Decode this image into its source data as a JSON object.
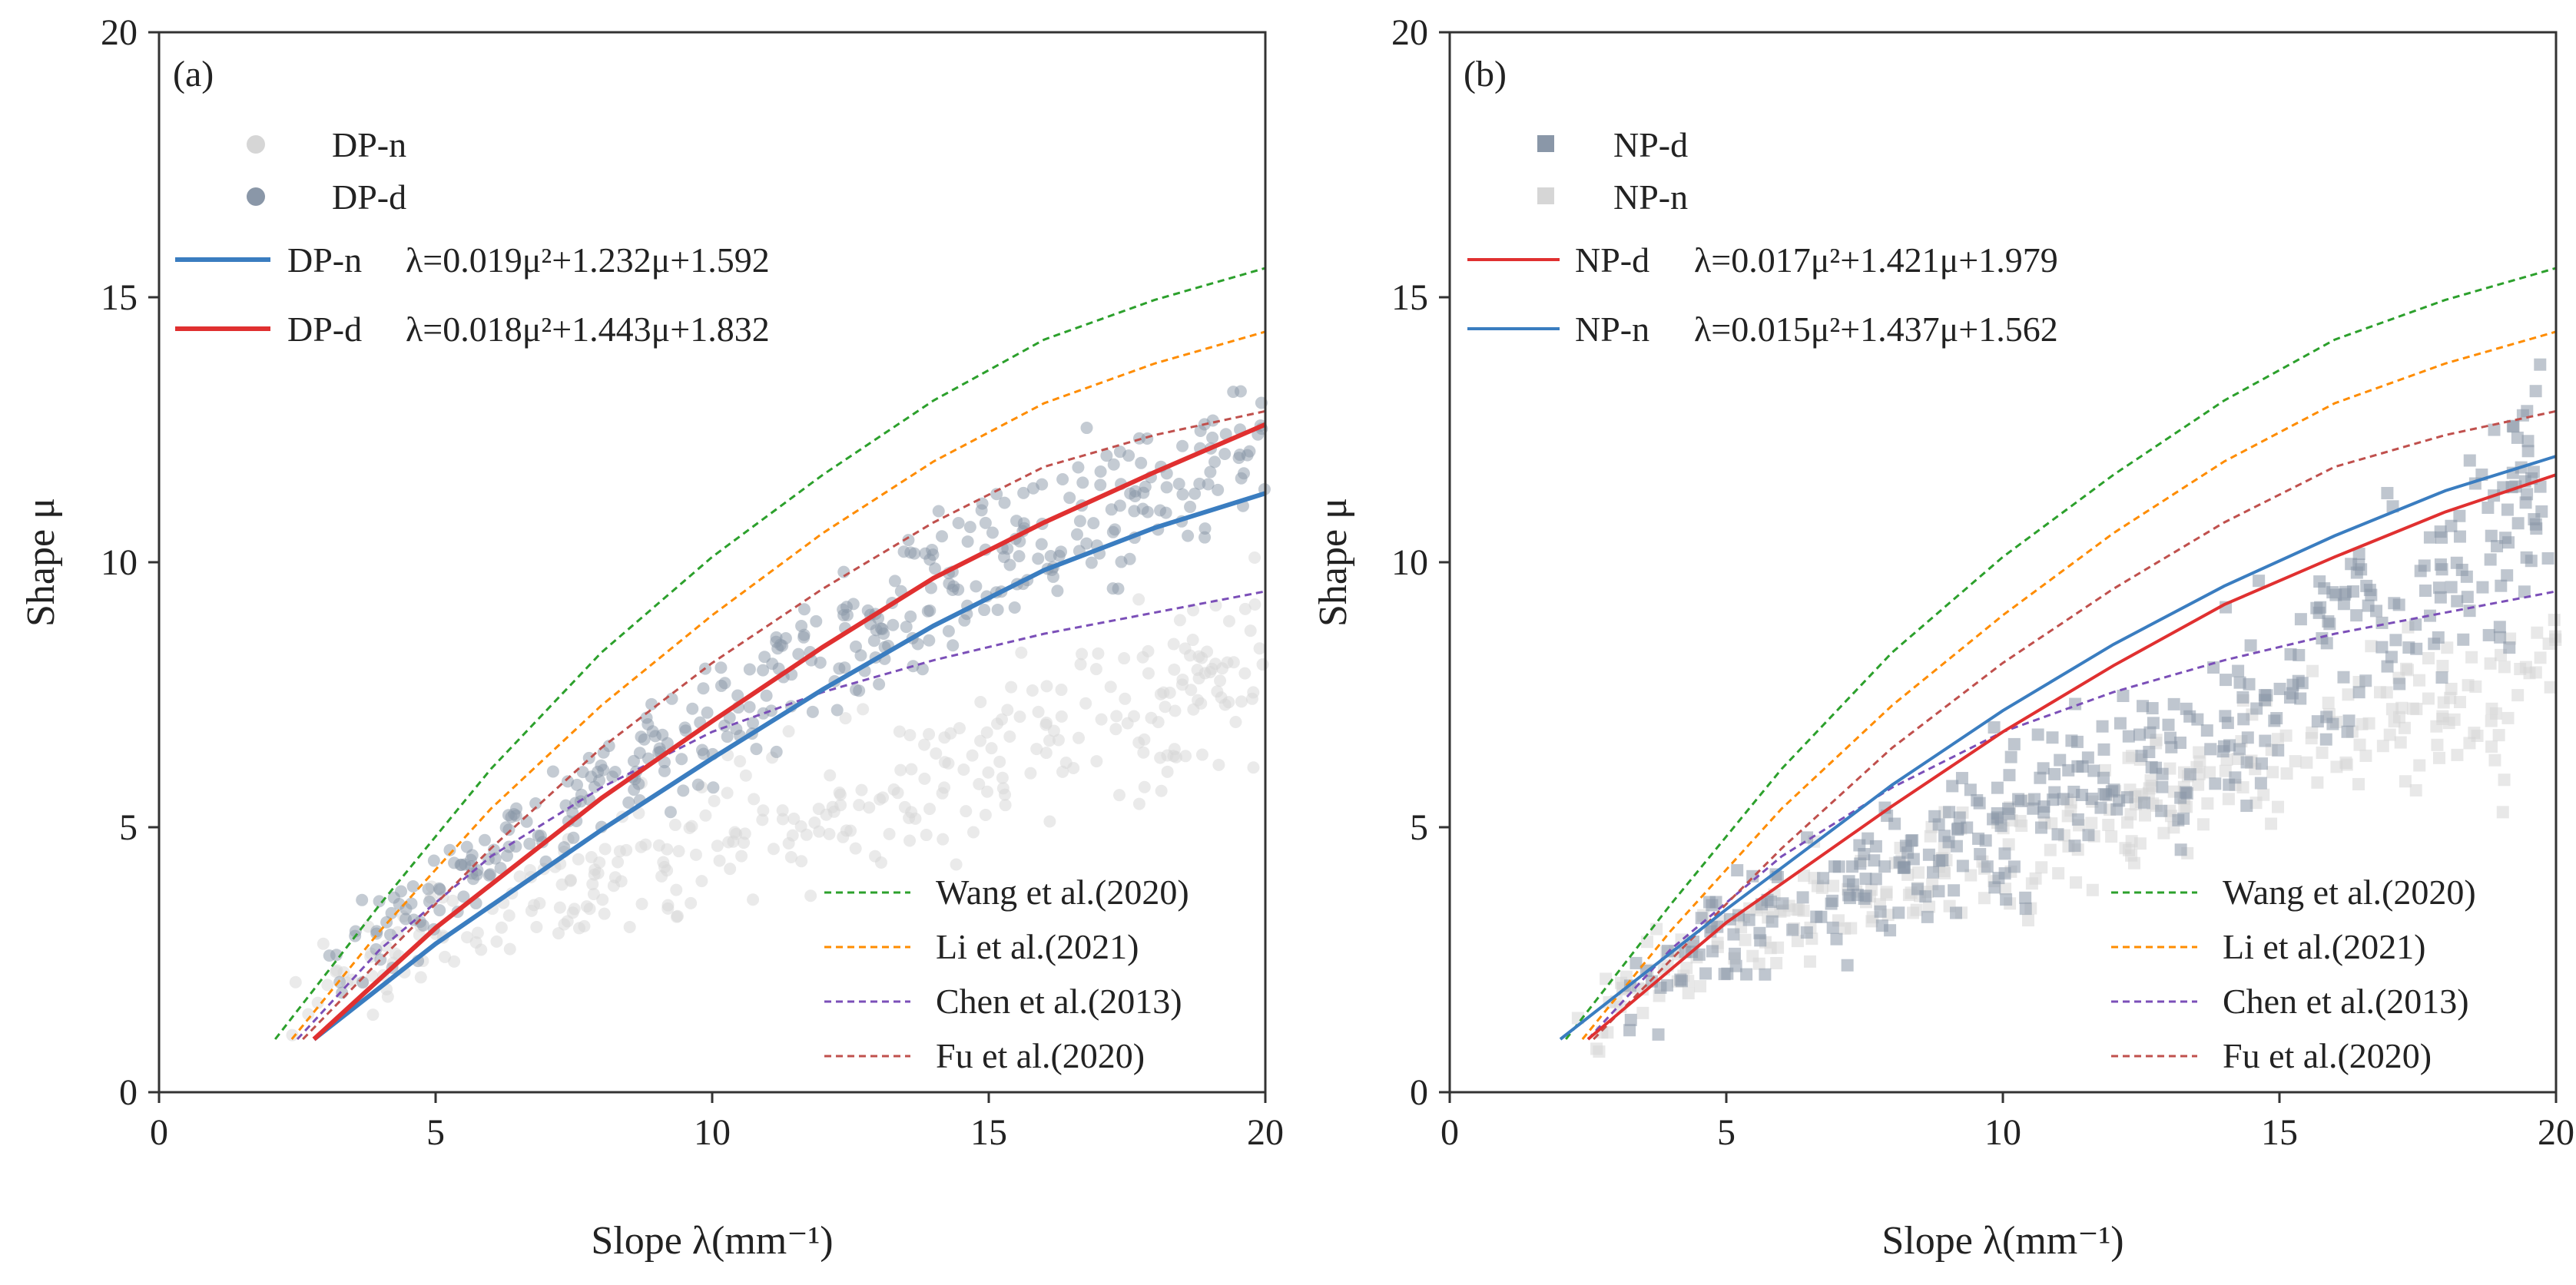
{
  "colors": {
    "wang": "#2ca02c",
    "li": "#ff8c00",
    "chen": "#7b4fb8",
    "fu": "#c0504d",
    "blue_fit": "#3a7dc0",
    "red_fit": "#e03030",
    "pts_light": "#d6d6d6",
    "pts_dark": "#8a97a8"
  },
  "chart_data": [
    {
      "type": "scatter",
      "panel_label": "(a)",
      "xlabel": "Slope λ(mm⁻¹)",
      "ylabel": "Shape μ",
      "xlim": [
        0,
        20
      ],
      "ylim": [
        0,
        20
      ],
      "xticks": [
        "0",
        "5",
        "10",
        "15",
        "20"
      ],
      "yticks": [
        "0",
        "5",
        "10",
        "15",
        "20"
      ],
      "scatter_legend": [
        {
          "name": "DP-n",
          "marker": "circle",
          "color": "#d6d6d6"
        },
        {
          "name": "DP-d",
          "marker": "circle",
          "color": "#8a97a8"
        }
      ],
      "fit_legend": [
        {
          "name": "DP-n",
          "equation": "λ=0.019μ²+1.232μ+1.592",
          "color": "#3a7dc0",
          "coef": [
            0.019,
            1.232,
            1.592
          ]
        },
        {
          "name": "DP-d",
          "equation": "λ=0.018μ²+1.443μ+1.832",
          "color": "#e03030",
          "coef": [
            0.018,
            1.443,
            1.832
          ]
        }
      ],
      "ref_legend": [
        {
          "name": "Wang et al.(2020)",
          "color": "#2ca02c",
          "curve": [
            [
              2.1,
              1
            ],
            [
              4,
              3.55
            ],
            [
              6,
              6.1
            ],
            [
              8,
              8.3
            ],
            [
              10,
              10.1
            ],
            [
              12,
              11.65
            ],
            [
              14,
              13.05
            ],
            [
              16,
              14.2
            ],
            [
              18,
              14.95
            ],
            [
              20,
              15.55
            ]
          ]
        },
        {
          "name": "Li et al.(2021)",
          "color": "#ff8c00",
          "curve": [
            [
              2.4,
              1
            ],
            [
              4,
              3.05
            ],
            [
              6,
              5.35
            ],
            [
              8,
              7.3
            ],
            [
              10,
              9
            ],
            [
              12,
              10.55
            ],
            [
              14,
              11.9
            ],
            [
              16,
              13
            ],
            [
              18,
              13.75
            ],
            [
              20,
              14.35
            ]
          ]
        },
        {
          "name": "Chen et al.(2013)",
          "color": "#7b4fb8",
          "curve": [
            [
              2.5,
              1
            ],
            [
              4,
              2.7
            ],
            [
              6,
              4.45
            ],
            [
              8,
              5.75
            ],
            [
              10,
              6.8
            ],
            [
              12,
              7.55
            ],
            [
              14,
              8.15
            ],
            [
              16,
              8.65
            ],
            [
              18,
              9.05
            ],
            [
              20,
              9.45
            ]
          ]
        },
        {
          "name": "Fu et al.(2020)",
          "color": "#c0504d",
          "curve": [
            [
              2.6,
              1
            ],
            [
              4,
              2.5
            ],
            [
              6,
              4.6
            ],
            [
              8,
              6.5
            ],
            [
              10,
              8.1
            ],
            [
              12,
              9.5
            ],
            [
              14,
              10.75
            ],
            [
              16,
              11.8
            ],
            [
              18,
              12.4
            ],
            [
              20,
              12.85
            ]
          ]
        }
      ],
      "fit_curves": [
        {
          "name": "DP-n",
          "color": "#3a7dc0",
          "curve": [
            [
              2.8,
              1
            ],
            [
              5,
              2.8
            ],
            [
              8,
              4.95
            ],
            [
              10,
              6.3
            ],
            [
              12,
              7.6
            ],
            [
              14,
              8.8
            ],
            [
              16,
              9.85
            ],
            [
              18,
              10.65
            ],
            [
              20,
              11.3
            ]
          ]
        },
        {
          "name": "DP-d",
          "color": "#e03030",
          "curve": [
            [
              2.8,
              1
            ],
            [
              5,
              3.1
            ],
            [
              8,
              5.55
            ],
            [
              10,
              7
            ],
            [
              12,
              8.4
            ],
            [
              14,
              9.7
            ],
            [
              16,
              10.75
            ],
            [
              18,
              11.7
            ],
            [
              20,
              12.6
            ]
          ]
        }
      ],
      "scatter_cloud": [
        {
          "series": "DP-n",
          "x_range": [
            2.3,
            20
          ],
          "center": [
            [
              2.3,
              1.3
            ],
            [
              5,
              3
            ],
            [
              10,
              4.8
            ],
            [
              15,
              6.3
            ],
            [
              20,
              8
            ]
          ],
          "spread": 1.4,
          "count": 330
        },
        {
          "series": "DP-d",
          "x_range": [
            3,
            20
          ],
          "center": [
            [
              3,
              2
            ],
            [
              6,
              4.6
            ],
            [
              10,
              7
            ],
            [
              14,
              9.4
            ],
            [
              18,
              11.4
            ],
            [
              20,
              12.2
            ]
          ],
          "spread": 1.2,
          "count": 380
        }
      ]
    },
    {
      "type": "scatter",
      "panel_label": "(b)",
      "xlabel": "Slope λ(mm⁻¹)",
      "ylabel": "Shape μ",
      "xlim": [
        0,
        20
      ],
      "ylim": [
        0,
        20
      ],
      "xticks": [
        "0",
        "5",
        "10",
        "15",
        "20"
      ],
      "yticks": [
        "0",
        "5",
        "10",
        "15",
        "20"
      ],
      "scatter_legend": [
        {
          "name": "NP-d",
          "marker": "square",
          "color": "#8a97a8"
        },
        {
          "name": "NP-n",
          "marker": "square",
          "color": "#d6d6d6"
        }
      ],
      "fit_legend": [
        {
          "name": "NP-d",
          "equation": "λ=0.017μ²+1.421μ+1.979",
          "color": "#e03030",
          "coef": [
            0.017,
            1.421,
            1.979
          ]
        },
        {
          "name": "NP-n",
          "equation": "λ=0.015μ²+1.437μ+1.562",
          "color": "#3a7dc0",
          "coef": [
            0.015,
            1.437,
            1.562
          ]
        }
      ],
      "ref_legend": [
        {
          "name": "Wang et al.(2020)",
          "color": "#2ca02c",
          "curve": [
            [
              2.1,
              1
            ],
            [
              4,
              3.55
            ],
            [
              6,
              6.1
            ],
            [
              8,
              8.3
            ],
            [
              10,
              10.1
            ],
            [
              12,
              11.65
            ],
            [
              14,
              13.05
            ],
            [
              16,
              14.2
            ],
            [
              18,
              14.95
            ],
            [
              20,
              15.55
            ]
          ]
        },
        {
          "name": "Li et al.(2021)",
          "color": "#ff8c00",
          "curve": [
            [
              2.4,
              1
            ],
            [
              4,
              3.05
            ],
            [
              6,
              5.35
            ],
            [
              8,
              7.3
            ],
            [
              10,
              9
            ],
            [
              12,
              10.55
            ],
            [
              14,
              11.9
            ],
            [
              16,
              13
            ],
            [
              18,
              13.75
            ],
            [
              20,
              14.35
            ]
          ]
        },
        {
          "name": "Chen et al.(2013)",
          "color": "#7b4fb8",
          "curve": [
            [
              2.5,
              1
            ],
            [
              4,
              2.7
            ],
            [
              6,
              4.45
            ],
            [
              8,
              5.75
            ],
            [
              10,
              6.8
            ],
            [
              12,
              7.55
            ],
            [
              14,
              8.15
            ],
            [
              16,
              8.65
            ],
            [
              18,
              9.05
            ],
            [
              20,
              9.45
            ]
          ]
        },
        {
          "name": "Fu et al.(2020)",
          "color": "#c0504d",
          "curve": [
            [
              2.6,
              1
            ],
            [
              4,
              2.5
            ],
            [
              6,
              4.6
            ],
            [
              8,
              6.5
            ],
            [
              10,
              8.1
            ],
            [
              12,
              9.5
            ],
            [
              14,
              10.75
            ],
            [
              16,
              11.8
            ],
            [
              18,
              12.4
            ],
            [
              20,
              12.85
            ]
          ]
        }
      ],
      "fit_curves": [
        {
          "name": "NP-d",
          "color": "#e03030",
          "curve": [
            [
              2.5,
              1
            ],
            [
              5,
              3.2
            ],
            [
              8,
              5.4
            ],
            [
              10,
              6.8
            ],
            [
              12,
              8.05
            ],
            [
              14,
              9.2
            ],
            [
              16,
              10.1
            ],
            [
              18,
              10.95
            ],
            [
              20,
              11.65
            ]
          ]
        },
        {
          "name": "NP-n",
          "color": "#3a7dc0",
          "curve": [
            [
              2,
              1
            ],
            [
              5,
              3.45
            ],
            [
              8,
              5.8
            ],
            [
              10,
              7.2
            ],
            [
              12,
              8.45
            ],
            [
              14,
              9.55
            ],
            [
              16,
              10.5
            ],
            [
              18,
              11.35
            ],
            [
              20,
              12
            ]
          ]
        }
      ],
      "scatter_cloud": [
        {
          "series": "NP-n",
          "x_range": [
            2.3,
            20
          ],
          "center": [
            [
              2.3,
              1.3
            ],
            [
              5,
              2.9
            ],
            [
              10,
              4.6
            ],
            [
              15,
              6.1
            ],
            [
              20,
              7.8
            ]
          ],
          "spread": 1.3,
          "count": 320
        },
        {
          "series": "NP-d",
          "x_range": [
            3,
            20
          ],
          "center": [
            [
              3,
              2
            ],
            [
              6,
              3.4
            ],
            [
              10,
              5.1
            ],
            [
              14,
              6.9
            ],
            [
              18,
              9.8
            ],
            [
              20,
              11.5
            ]
          ],
          "spread": 1.6,
          "count": 380
        }
      ]
    }
  ]
}
